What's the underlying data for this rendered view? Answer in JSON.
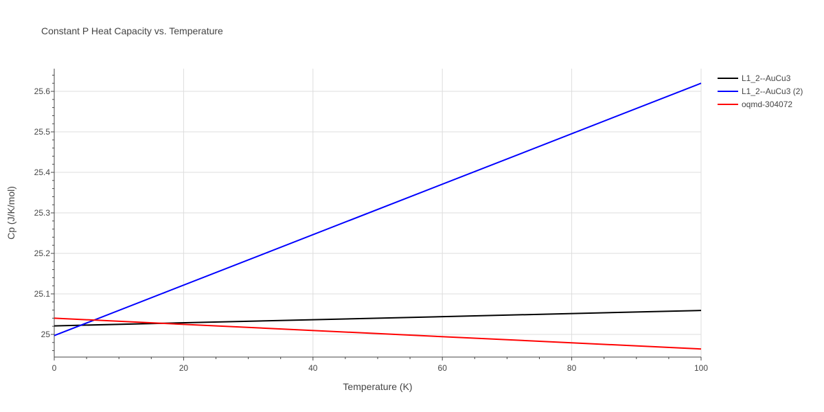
{
  "chart_data": {
    "type": "line",
    "title": "Constant P Heat Capacity vs. Temperature",
    "xlabel": "Temperature (K)",
    "ylabel": "Cp (J/K/mol)",
    "xlim": [
      0,
      100
    ],
    "ylim": [
      24.944,
      25.656
    ],
    "x_ticks": [
      0,
      20,
      40,
      60,
      80,
      100
    ],
    "x_tick_labels": [
      "0",
      "20",
      "40",
      "60",
      "80",
      "100"
    ],
    "y_ticks": [
      25.0,
      25.1,
      25.2,
      25.3,
      25.4,
      25.5,
      25.6
    ],
    "y_tick_labels": [
      "25",
      "25.1",
      "25.2",
      "25.3",
      "25.4",
      "25.5",
      "25.6"
    ],
    "grid": true,
    "legend_position": "top-right",
    "series": [
      {
        "name": "L1_2--AuCu3",
        "color": "#000000",
        "x": [
          0,
          100
        ],
        "y": [
          25.021,
          25.059
        ]
      },
      {
        "name": "L1_2--AuCu3 (2)",
        "color": "#0000ff",
        "x": [
          0,
          100
        ],
        "y": [
          24.997,
          25.62
        ]
      },
      {
        "name": "oqmd-304072",
        "color": "#ff0000",
        "x": [
          0,
          100
        ],
        "y": [
          25.04,
          24.964
        ]
      }
    ]
  }
}
